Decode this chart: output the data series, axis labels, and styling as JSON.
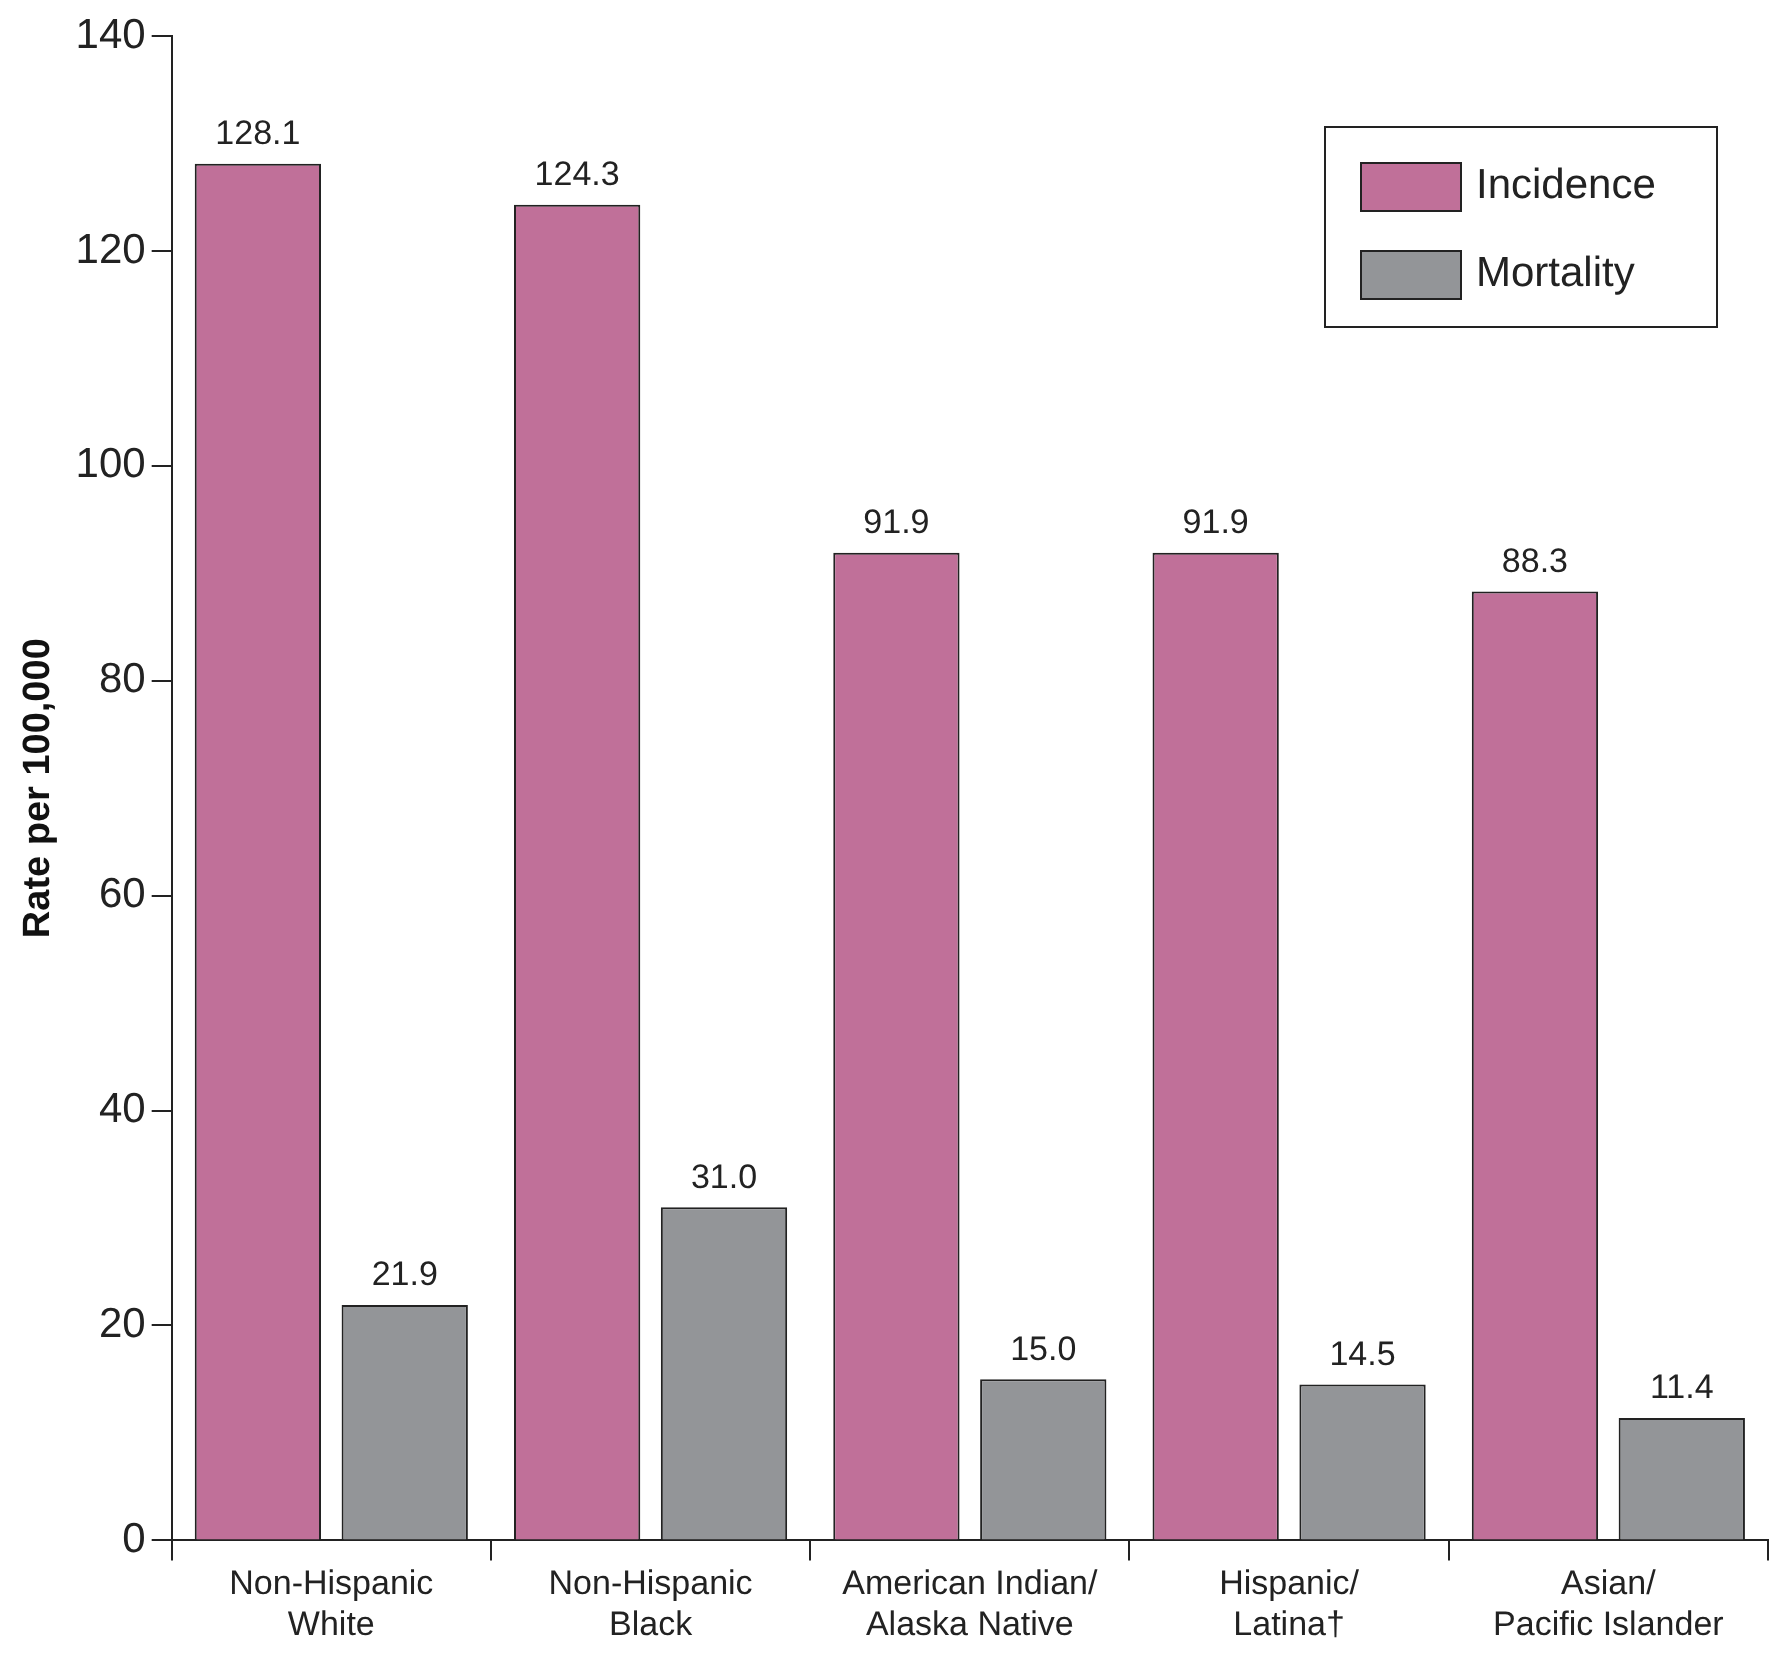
{
  "chart_data": {
    "type": "bar",
    "ylabel": "Rate per 100,000",
    "categories": [
      "Non-Hispanic\nWhite",
      "Non-Hispanic\nBlack",
      "American Indian/\nAlaska Native",
      "Hispanic/\nLatina†",
      "Asian/\nPacific Islander"
    ],
    "series": [
      {
        "name": "Incidence",
        "color": "#c07099",
        "values": [
          128.1,
          124.3,
          91.9,
          91.9,
          88.3
        ]
      },
      {
        "name": "Mortality",
        "color": "#939598",
        "values": [
          21.9,
          31.0,
          15.0,
          14.5,
          11.4
        ]
      }
    ],
    "value_labels": [
      [
        "128.1",
        "124.3",
        "91.9",
        "91.9",
        "88.3"
      ],
      [
        "21.9",
        "31.0",
        "15.0",
        "14.5",
        "11.4"
      ]
    ],
    "ylim": [
      0,
      140
    ],
    "yticks": [
      0,
      20,
      40,
      60,
      80,
      100,
      120,
      140
    ],
    "grid": false,
    "legend": "top right"
  }
}
